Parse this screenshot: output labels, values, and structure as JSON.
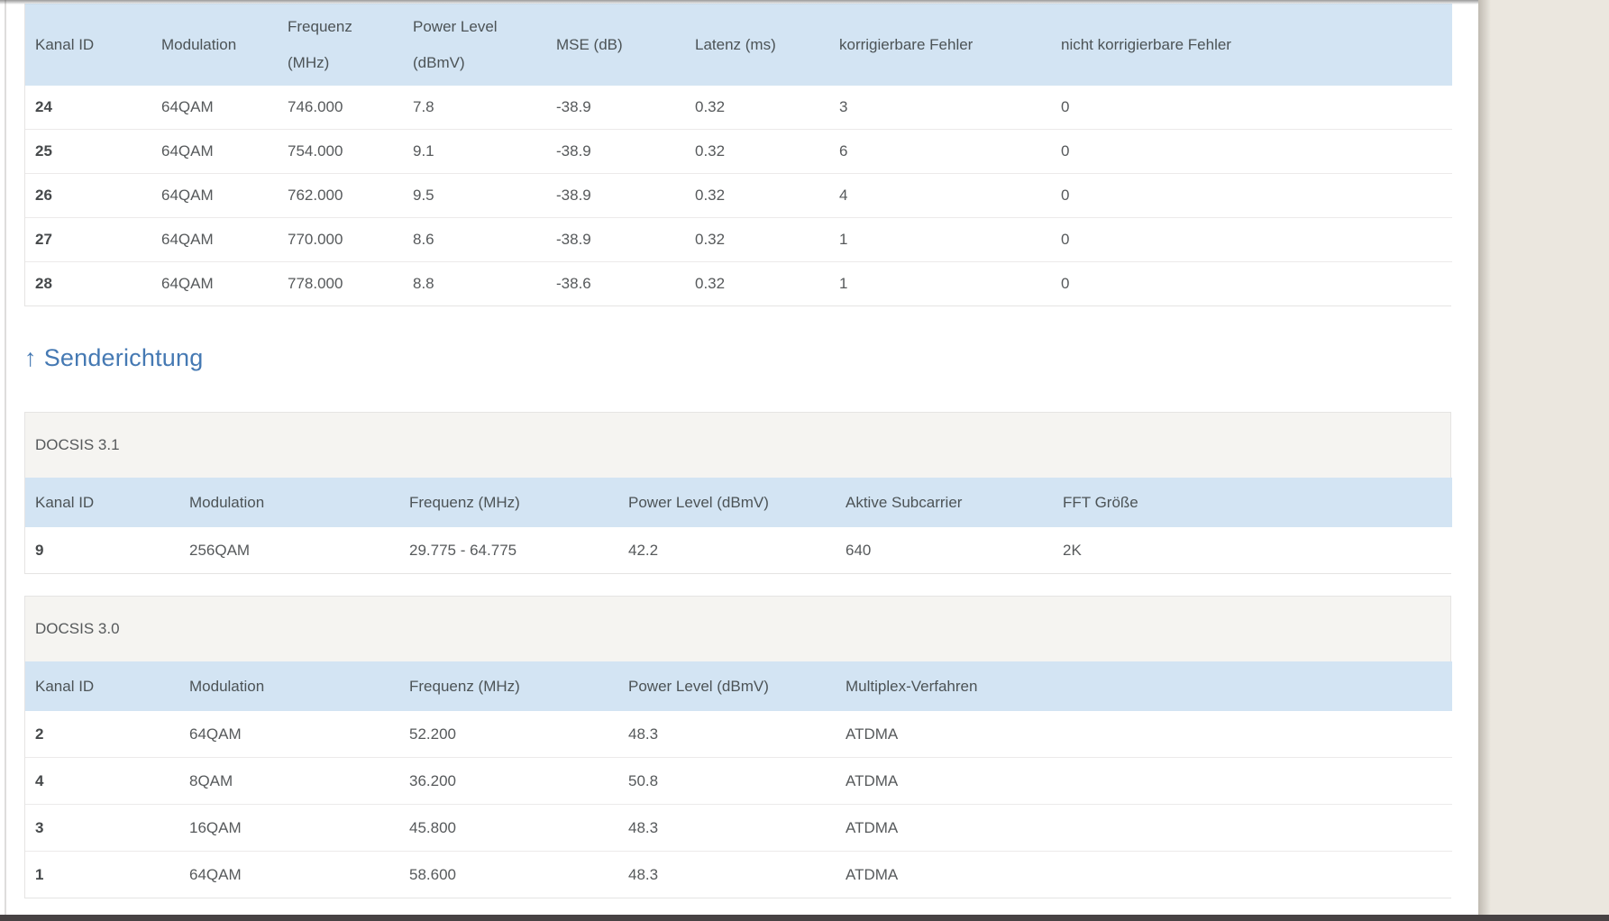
{
  "upstream_heading": {
    "arrow": "↑",
    "label": "Senderichtung"
  },
  "downstream_table": {
    "columns": [
      "Kanal ID",
      "Modulation",
      "Frequenz (MHz)",
      "Power Level (dBmV)",
      "MSE (dB)",
      "Latenz (ms)",
      "korrigierbare Fehler",
      "nicht korrigierbare Fehler"
    ],
    "rows": [
      [
        "24",
        "64QAM",
        "746.000",
        "7.8",
        "-38.9",
        "0.32",
        "3",
        "0"
      ],
      [
        "25",
        "64QAM",
        "754.000",
        "9.1",
        "-38.9",
        "0.32",
        "6",
        "0"
      ],
      [
        "26",
        "64QAM",
        "762.000",
        "9.5",
        "-38.9",
        "0.32",
        "4",
        "0"
      ],
      [
        "27",
        "64QAM",
        "770.000",
        "8.6",
        "-38.9",
        "0.32",
        "1",
        "0"
      ],
      [
        "28",
        "64QAM",
        "778.000",
        "8.8",
        "-38.6",
        "0.32",
        "1",
        "0"
      ]
    ]
  },
  "docsis31": {
    "section_label": "DOCSIS 3.1",
    "columns": [
      "Kanal ID",
      "Modulation",
      "Frequenz (MHz)",
      "Power Level (dBmV)",
      "Aktive Subcarrier",
      "FFT Größe"
    ],
    "rows": [
      [
        "9",
        "256QAM",
        "29.775 - 64.775",
        "42.2",
        "640",
        "2K"
      ]
    ]
  },
  "docsis30": {
    "section_label": "DOCSIS 3.0",
    "columns": [
      "Kanal ID",
      "Modulation",
      "Frequenz (MHz)",
      "Power Level (dBmV)",
      "Multiplex-Verfahren"
    ],
    "rows": [
      [
        "2",
        "64QAM",
        "52.200",
        "48.3",
        "ATDMA"
      ],
      [
        "4",
        "8QAM",
        "36.200",
        "50.8",
        "ATDMA"
      ],
      [
        "3",
        "16QAM",
        "45.800",
        "48.3",
        "ATDMA"
      ],
      [
        "1",
        "64QAM",
        "58.600",
        "48.3",
        "ATDMA"
      ]
    ]
  },
  "colors": {
    "table_header_blue": "#d3e4f3",
    "section_band_gray": "#f5f4f1",
    "heading_blue": "#4579b3",
    "desktop_beige": "#ebe7df",
    "bottom_bar_dark": "#474243"
  }
}
